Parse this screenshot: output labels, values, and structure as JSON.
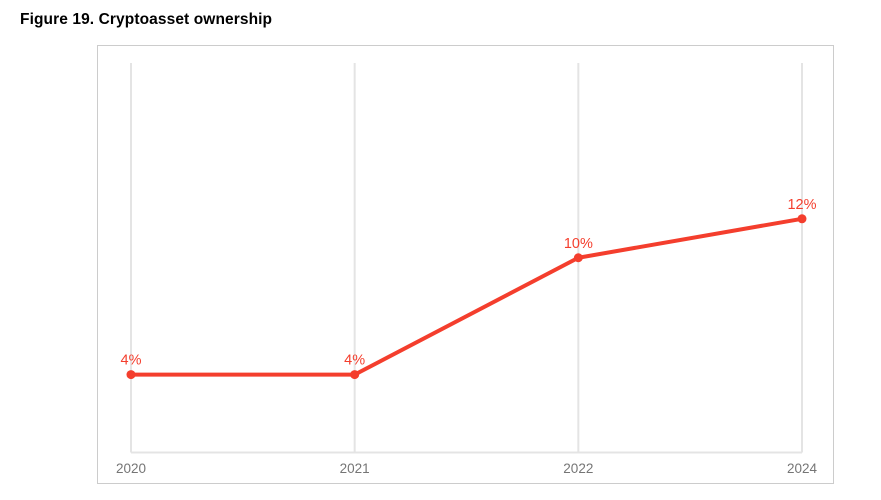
{
  "page": {
    "title": "Figure 19. Cryptoasset ownership"
  },
  "chart_data": {
    "type": "line",
    "title": "Figure 19. Cryptoasset ownership",
    "categories": [
      "2020",
      "2021",
      "2022",
      "2024"
    ],
    "series": [
      {
        "name": "Cryptoasset ownership",
        "values": [
          4,
          4,
          10,
          12
        ]
      }
    ],
    "data_labels": [
      "4%",
      "4%",
      "10%",
      "12%"
    ],
    "xlabel": "",
    "ylabel": "",
    "ylim": [
      0,
      20
    ],
    "grid": "vertical-only",
    "legend": "none",
    "colors": {
      "line": "#f43e2d",
      "point": "#f43e2d",
      "data_label": "#f43e2d",
      "axis_label": "#757575",
      "gridline": "#e4e4e4",
      "axis_line": "#e4e4e4",
      "frame_border": "#cccccc",
      "background": "#ffffff"
    }
  }
}
